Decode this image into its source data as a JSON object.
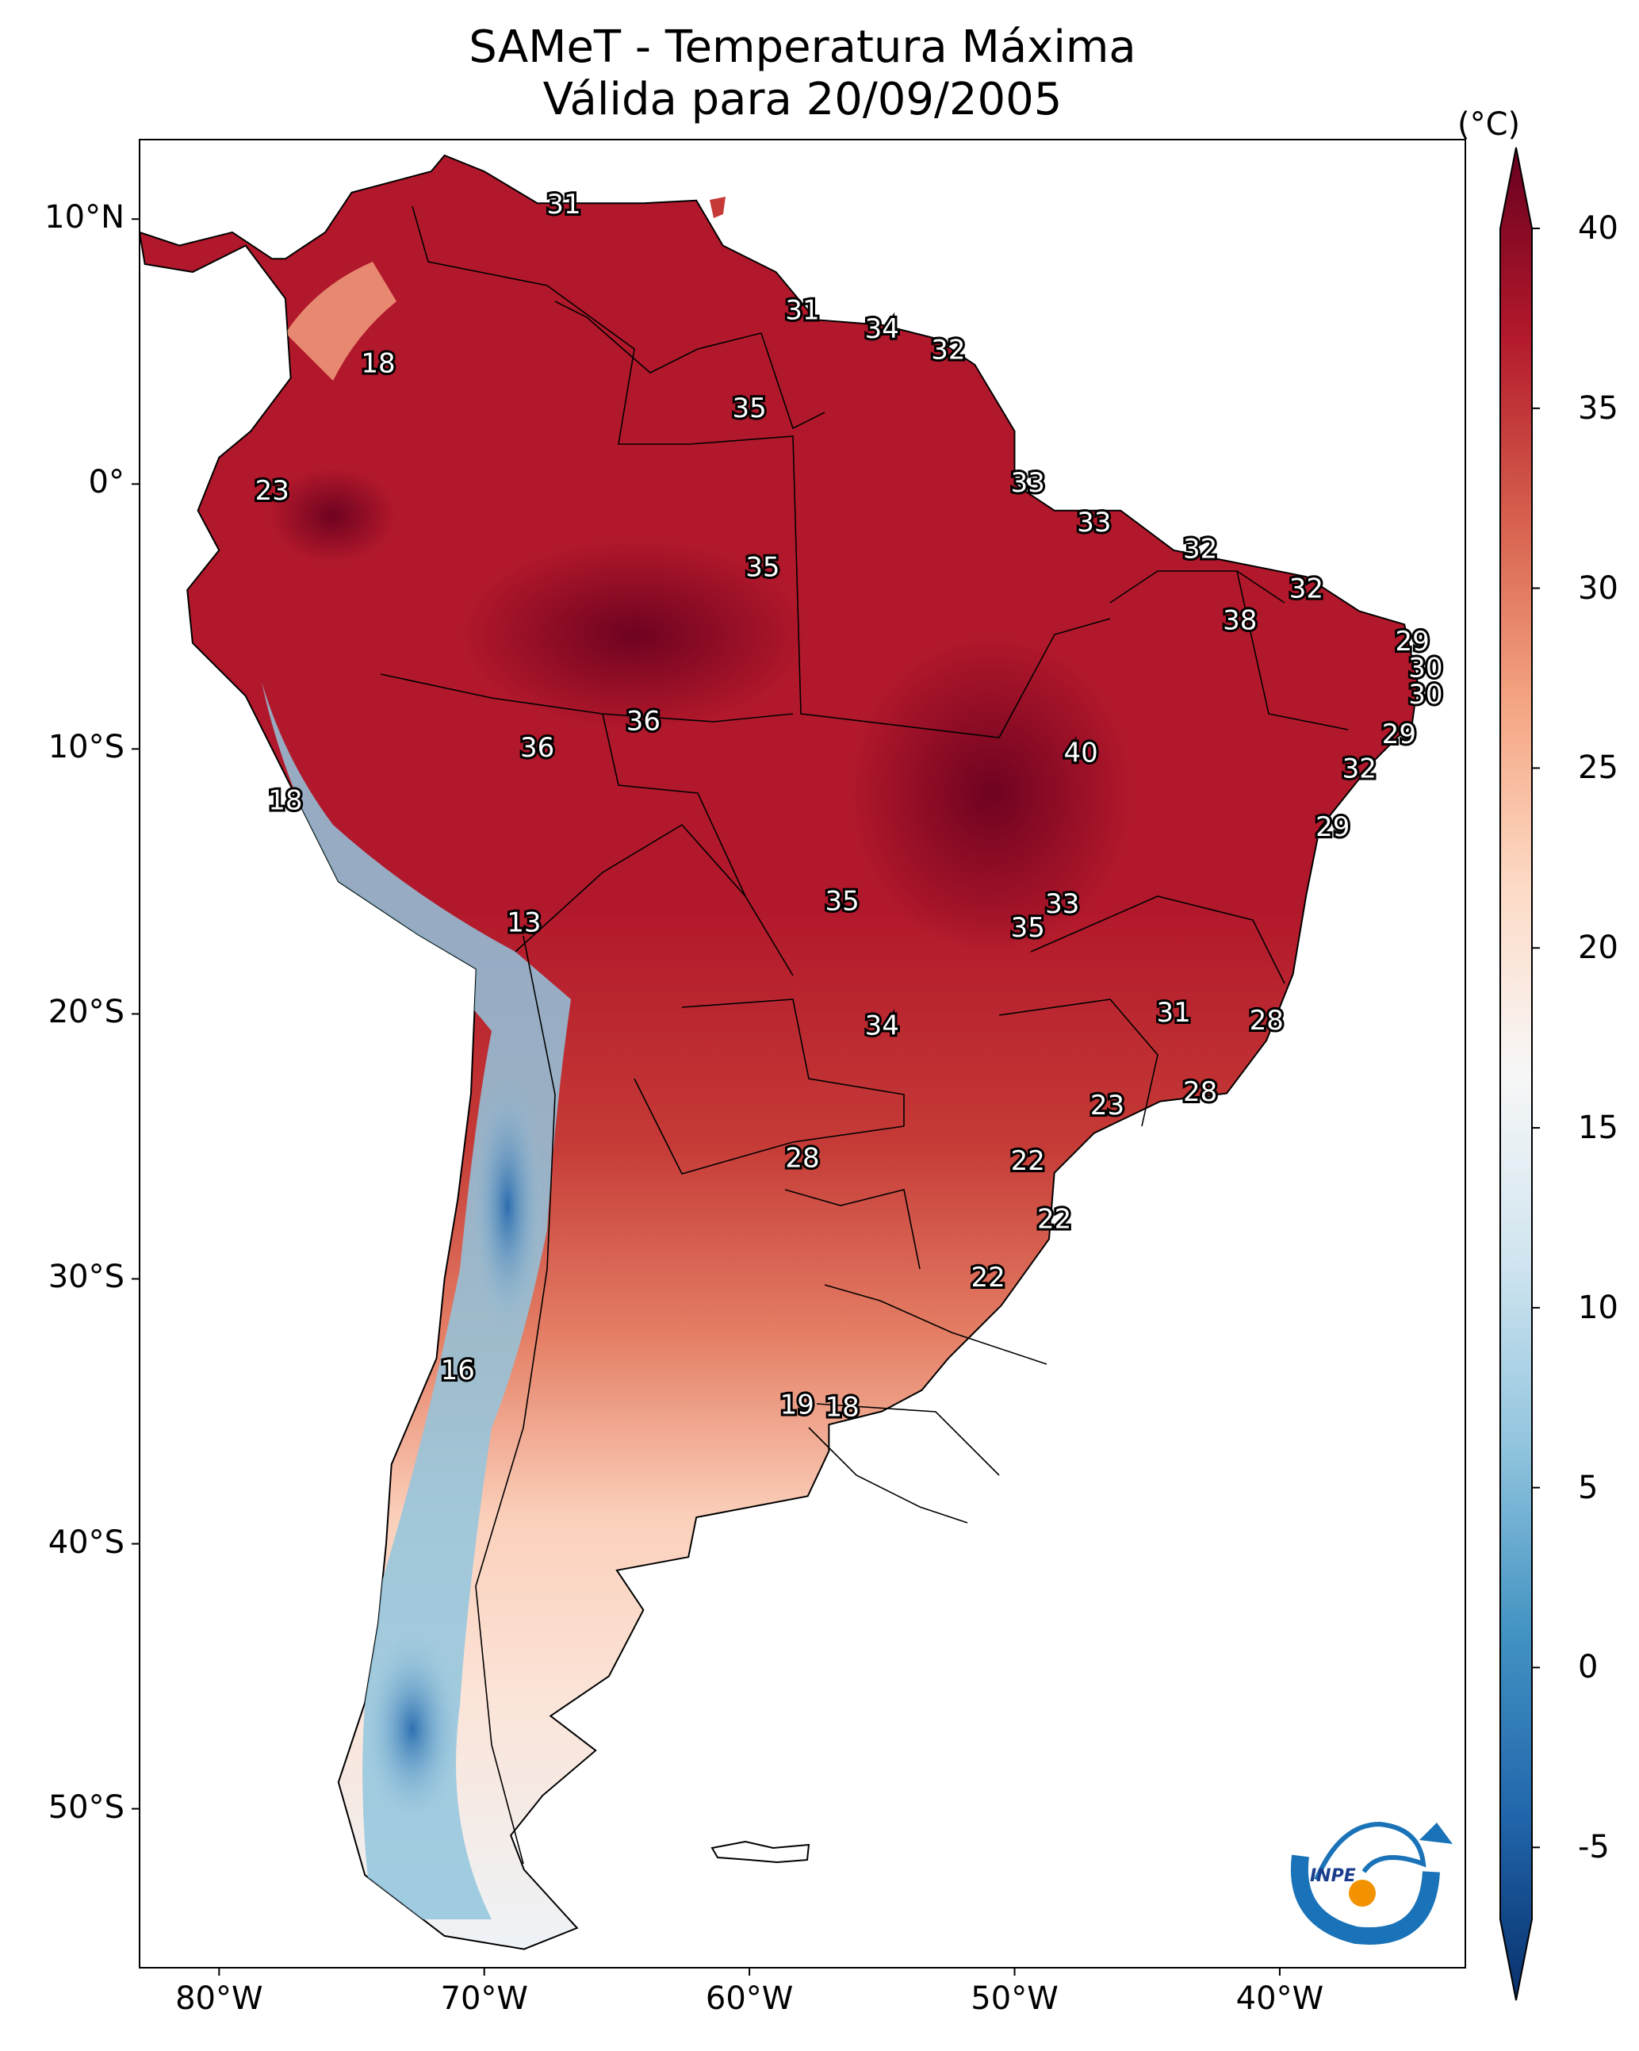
{
  "title": "SAMeT - Temperatura Máxima",
  "subtitle": "Válida para 20/09/2005",
  "colorbar": {
    "unit": "(°C)",
    "ticks": [
      "40",
      "35",
      "30",
      "25",
      "20",
      "15",
      "10",
      "5",
      "0",
      "-5"
    ],
    "range": [
      -7,
      40
    ],
    "colors": [
      "#08306b",
      "#2166ac",
      "#4393c3",
      "#92c5de",
      "#d1e5f0",
      "#f7f7f7",
      "#fddbc7",
      "#f4a582",
      "#d6604d",
      "#b2182b",
      "#67001f"
    ]
  },
  "axes": {
    "lat_labels": [
      "10°N",
      "0°",
      "10°S",
      "20°S",
      "30°S",
      "40°S",
      "50°S"
    ],
    "lon_labels": [
      "80°W",
      "70°W",
      "60°W",
      "50°W",
      "40°W"
    ]
  },
  "map_labels": [
    {
      "text": "31",
      "lon": -67,
      "lat": 10.5
    },
    {
      "text": "31",
      "lon": -58,
      "lat": 6.5
    },
    {
      "text": "34",
      "lon": -55,
      "lat": 5.8
    },
    {
      "text": "32",
      "lon": -52.5,
      "lat": 5
    },
    {
      "text": "18",
      "lon": -74,
      "lat": 4.5
    },
    {
      "text": "35",
      "lon": -60,
      "lat": 2.8
    },
    {
      "text": "33",
      "lon": -49.5,
      "lat": 0
    },
    {
      "text": "23",
      "lon": -78,
      "lat": -0.3
    },
    {
      "text": "33",
      "lon": -47,
      "lat": -1.5
    },
    {
      "text": "32",
      "lon": -43,
      "lat": -2.5
    },
    {
      "text": "35",
      "lon": -59.5,
      "lat": -3.2
    },
    {
      "text": "32",
      "lon": -39,
      "lat": -4
    },
    {
      "text": "38",
      "lon": -41.5,
      "lat": -5.2
    },
    {
      "text": "29",
      "lon": -35,
      "lat": -6
    },
    {
      "text": "30",
      "lon": -34.5,
      "lat": -7
    },
    {
      "text": "30",
      "lon": -34.5,
      "lat": -8
    },
    {
      "text": "36",
      "lon": -64,
      "lat": -9
    },
    {
      "text": "29",
      "lon": -35.5,
      "lat": -9.5
    },
    {
      "text": "36",
      "lon": -68,
      "lat": -10
    },
    {
      "text": "40",
      "lon": -47.5,
      "lat": -10.2
    },
    {
      "text": "32",
      "lon": -37,
      "lat": -10.8
    },
    {
      "text": "18",
      "lon": -77.5,
      "lat": -12
    },
    {
      "text": "29",
      "lon": -38,
      "lat": -13
    },
    {
      "text": "13",
      "lon": -68.5,
      "lat": -16.6
    },
    {
      "text": "35",
      "lon": -56.5,
      "lat": -15.8
    },
    {
      "text": "33",
      "lon": -48.2,
      "lat": -15.9
    },
    {
      "text": "35",
      "lon": -49.5,
      "lat": -16.8
    },
    {
      "text": "31",
      "lon": -44,
      "lat": -20
    },
    {
      "text": "28",
      "lon": -40.5,
      "lat": -20.3
    },
    {
      "text": "34",
      "lon": -55,
      "lat": -20.5
    },
    {
      "text": "28",
      "lon": -43,
      "lat": -23
    },
    {
      "text": "23",
      "lon": -46.5,
      "lat": -23.5
    },
    {
      "text": "28",
      "lon": -58,
      "lat": -25.5
    },
    {
      "text": "22",
      "lon": -49.5,
      "lat": -25.6
    },
    {
      "text": "22",
      "lon": -48.5,
      "lat": -27.8
    },
    {
      "text": "22",
      "lon": -51,
      "lat": -30
    },
    {
      "text": "16",
      "lon": -71,
      "lat": -33.5
    },
    {
      "text": "19",
      "lon": -58.2,
      "lat": -34.8
    },
    {
      "text": "18",
      "lon": -56.5,
      "lat": -34.9
    }
  ],
  "logo_text": "INPE"
}
